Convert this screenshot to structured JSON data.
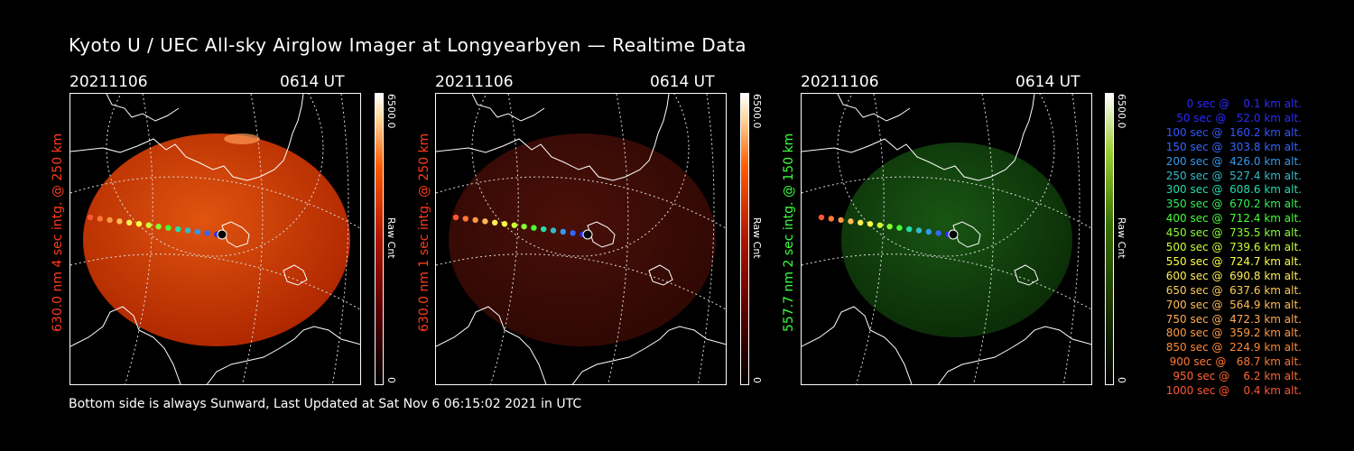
{
  "title": "Kyoto U / UEC All-sky Airglow Imager at Longyearbyen — Realtime Data",
  "panels": [
    {
      "date": "20211106",
      "time": "0614 UT",
      "side_label": "630.0 nm 4 sec intg. @ 250 km",
      "side_color": "#ff3b1e",
      "cbar_max": "6500.0",
      "cbar_min": "0",
      "cbar_unit": "Raw Cnt",
      "tint": "red",
      "brightness": "bright"
    },
    {
      "date": "20211106",
      "time": "0614 UT",
      "side_label": "630.0 nm 1 sec intg. @ 250 km",
      "side_color": "#ff3b1e",
      "cbar_max": "6500.0",
      "cbar_min": "0",
      "cbar_unit": "Raw Cnt",
      "tint": "red",
      "brightness": "dim"
    },
    {
      "date": "20211106",
      "time": "0614 UT",
      "side_label": "557.7 nm 2 sec intg. @ 150 km",
      "side_color": "#3cff3c",
      "cbar_max": "6500.0",
      "cbar_min": "0",
      "cbar_unit": "Raw Cnt",
      "tint": "green",
      "brightness": "dim"
    }
  ],
  "legend": [
    {
      "text": "   0 sec @    0.1 km alt.",
      "color": "#2b2bff"
    },
    {
      "text": "  50 sec @   52.0 km alt.",
      "color": "#2b2bff"
    },
    {
      "text": " 100 sec @  160.2 km alt.",
      "color": "#3355ff"
    },
    {
      "text": " 150 sec @  303.8 km alt.",
      "color": "#3366ff"
    },
    {
      "text": " 200 sec @  426.0 km alt.",
      "color": "#3399ee"
    },
    {
      "text": " 250 sec @  527.4 km alt.",
      "color": "#33bbcc"
    },
    {
      "text": " 300 sec @  608.6 km alt.",
      "color": "#22ddaa"
    },
    {
      "text": " 350 sec @  670.2 km alt.",
      "color": "#33ee55"
    },
    {
      "text": " 400 sec @  712.4 km alt.",
      "color": "#44ff33"
    },
    {
      "text": " 450 sec @  735.5 km alt.",
      "color": "#88ff33"
    },
    {
      "text": " 500 sec @  739.6 km alt.",
      "color": "#ccff33"
    },
    {
      "text": " 550 sec @  724.7 km alt.",
      "color": "#ffff44"
    },
    {
      "text": " 600 sec @  690.8 km alt.",
      "color": "#ffee55"
    },
    {
      "text": " 650 sec @  637.6 km alt.",
      "color": "#ffcc55"
    },
    {
      "text": " 700 sec @  564.9 km alt.",
      "color": "#ffbb55"
    },
    {
      "text": " 750 sec @  472.3 km alt.",
      "color": "#ffaa55"
    },
    {
      "text": " 800 sec @  359.2 km alt.",
      "color": "#ff9944"
    },
    {
      "text": " 850 sec @  224.9 km alt.",
      "color": "#ff8833"
    },
    {
      "text": " 900 sec @   68.7 km alt.",
      "color": "#ff7733"
    },
    {
      "text": " 950 sec @    6.2 km alt.",
      "color": "#ff6633"
    },
    {
      "text": "1000 sec @    0.4 km alt.",
      "color": "#ff5533"
    }
  ],
  "footer": "Bottom side is always Sunward, Last Updated at Sat Nov  6 06:15:02 2021 in UTC"
}
